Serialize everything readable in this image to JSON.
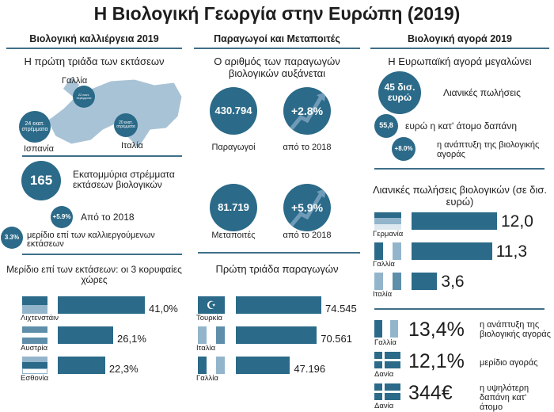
{
  "title": "Η Βιολογική Γεωργία στην Ευρώπη (2019)",
  "columns": [
    "Βιολογική καλλιέργεια 2019",
    "Παραγωγοί και Μεταποιτές",
    "Βιολογική αγορά 2019"
  ],
  "left": {
    "map_title": "Η πρώτη τριάδα των εκτάσεων",
    "map_labels": {
      "france": "Γαλλία",
      "spain": "Ισπανία",
      "italy": "Ιταλία"
    },
    "map_bubbles": {
      "france": "22 εκατ. στρέμματα",
      "spain": "24 εκατ. στρέμματα",
      "italy": "20 εκατ. στρέμματα"
    },
    "area_value": "165",
    "area_text": "Εκατομμύρια στρέμματα εκτάσεων βιολογικών",
    "growth_value": "+5.9%",
    "growth_text": "Από το 2018",
    "share_value": "3.3%",
    "share_text": "μερίδιο επί των καλλιεργούμενων εκτάσεων"
  },
  "middle": {
    "subtitle": "Ο αριθμός των παραγωγών βιολογικών αυξάνεται",
    "producers_value": "430.794",
    "producers_label": "Παραγωγοί",
    "producers_growth": "+2.8%",
    "producers_growth_label": "από το 2018",
    "processors_value": "81.719",
    "processors_label": "Μεταποιτές",
    "processors_growth": "+5.9%",
    "processors_growth_label": "από το 2018"
  },
  "right": {
    "subtitle": "Η Ευρωπαϊκή αγορά μεγαλώνει",
    "sales_value": "45 δισ. ευρώ",
    "sales_label": "Λιανικές πωλήσεις",
    "per_capita_value": "55,8",
    "per_capita_label": "ευρώ η κατ' άτομο δαπάνη",
    "market_growth_value": "+8.0%",
    "market_growth_label": "η ανάπτυξη της βιολογικής αγοράς",
    "facts": [
      {
        "country": "Γαλλία",
        "value": "13,4%",
        "label": "η ανάπτυξη της βιολογικής αγοράς"
      },
      {
        "country": "Δανία",
        "value": "12,1%",
        "label": "μερίδιο αγοράς"
      },
      {
        "country": "Δανία",
        "value": "344€",
        "label": "η υψηλότερη δαπάνη κατ' άτομο"
      }
    ]
  },
  "colors": {
    "dark": "#2b6a88",
    "light": "#93b5cc"
  },
  "chart_data": [
    {
      "type": "bar",
      "title": "Μερίδιο επί των εκτάσεων: οι 3 κορυφαίες χώρες",
      "categories": [
        "Λιχτενστάιν",
        "Αυστρία",
        "Εσθονία"
      ],
      "values": [
        41.0,
        26.1,
        22.3
      ],
      "labels": [
        "41,0%",
        "26,1%",
        "22,3%"
      ],
      "max": 41.0
    },
    {
      "type": "bar",
      "title": "Πρώτη τριάδα παραγωγών",
      "categories": [
        "Τουρκία",
        "Ιταλία",
        "Γαλλία"
      ],
      "values": [
        74545,
        70561,
        47196
      ],
      "labels": [
        "74.545",
        "70.561",
        "47.196"
      ],
      "max": 74545
    },
    {
      "type": "bar",
      "title": "Λιανικές πωλήσεις βιολογικών (σε δισ. ευρώ)",
      "categories": [
        "Γερμανία",
        "Γαλλία",
        "Ιταλία"
      ],
      "values": [
        12.0,
        11.3,
        3.6
      ],
      "labels": [
        "12,0",
        "11,3",
        "3,6"
      ],
      "max": 12.0
    }
  ]
}
